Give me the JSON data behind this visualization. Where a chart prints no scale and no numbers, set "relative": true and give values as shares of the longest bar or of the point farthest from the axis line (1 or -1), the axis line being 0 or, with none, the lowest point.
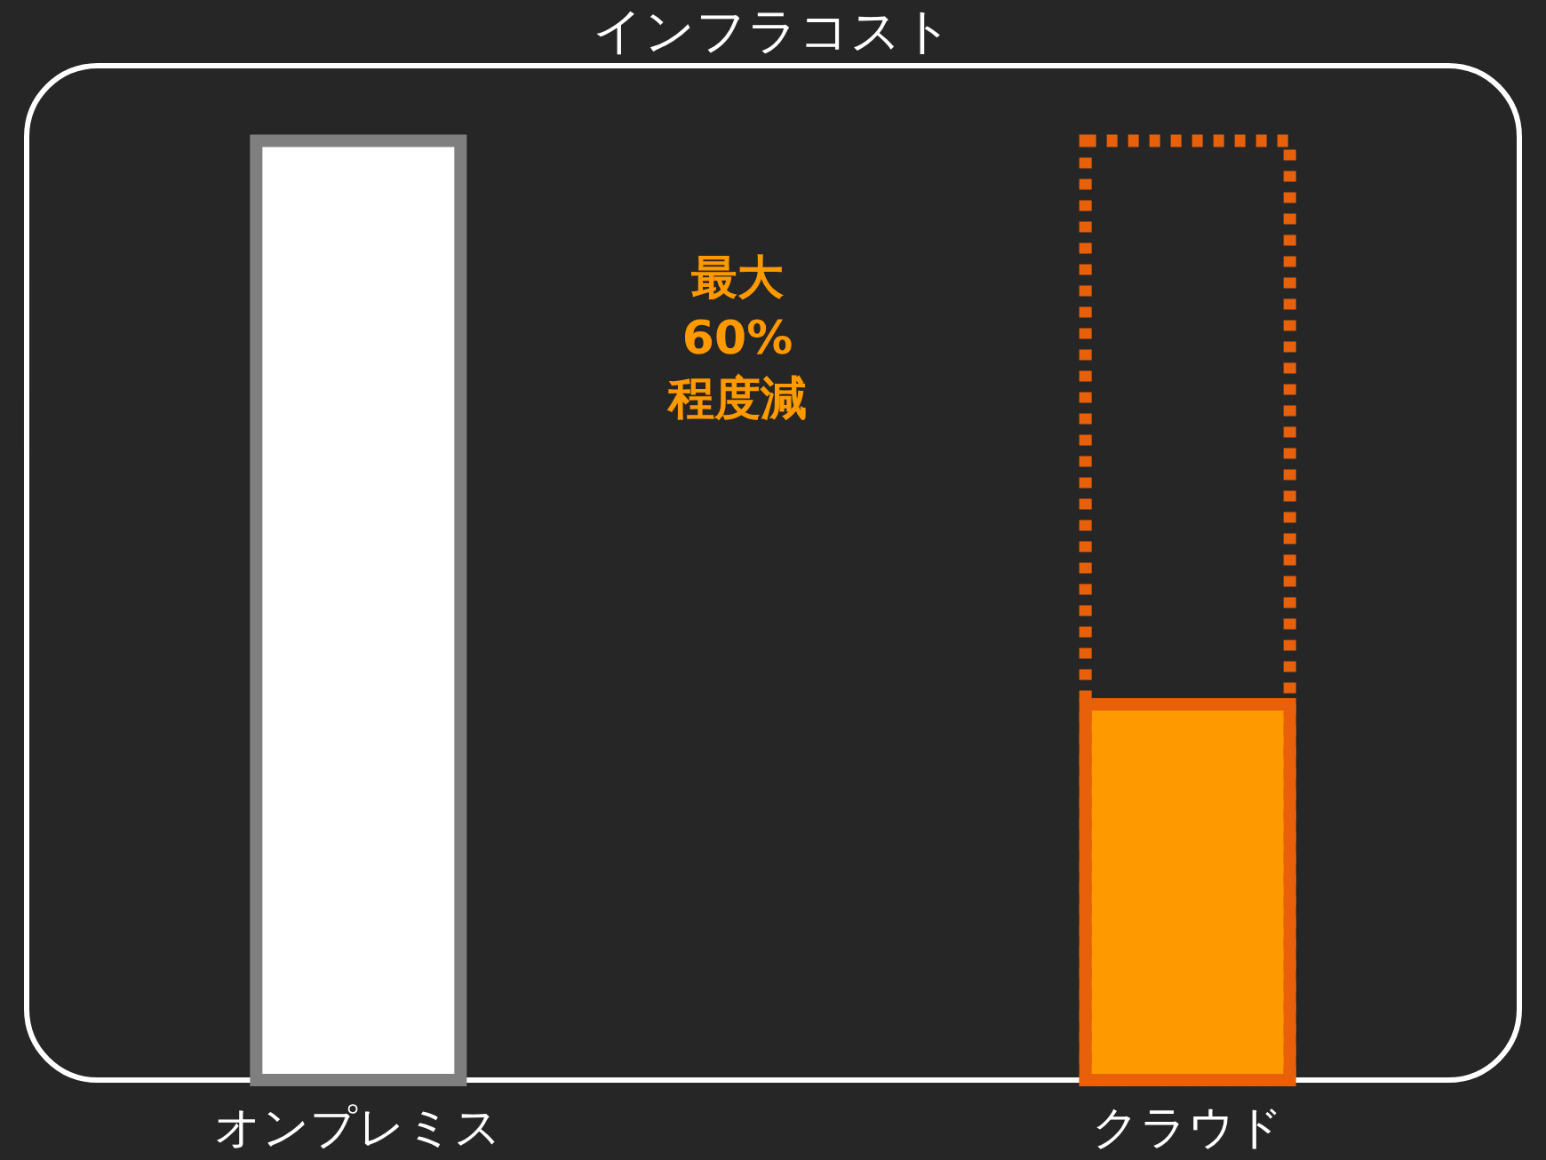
{
  "chart_data": {
    "type": "bar",
    "title": "インフラコスト",
    "categories": [
      "オンプレミス",
      "クラウド"
    ],
    "relative": true,
    "series": [
      {
        "values": [
          1,
          0.4
        ],
        "colors": [
          "#ffffff",
          "#ff9900"
        ]
      },
      {
        "values": [
          null,
          1
        ],
        "color": "#e8600a",
        "line_style": "dotted"
      }
    ],
    "annotations": [
      "最大\n60%\n程度減"
    ]
  }
}
